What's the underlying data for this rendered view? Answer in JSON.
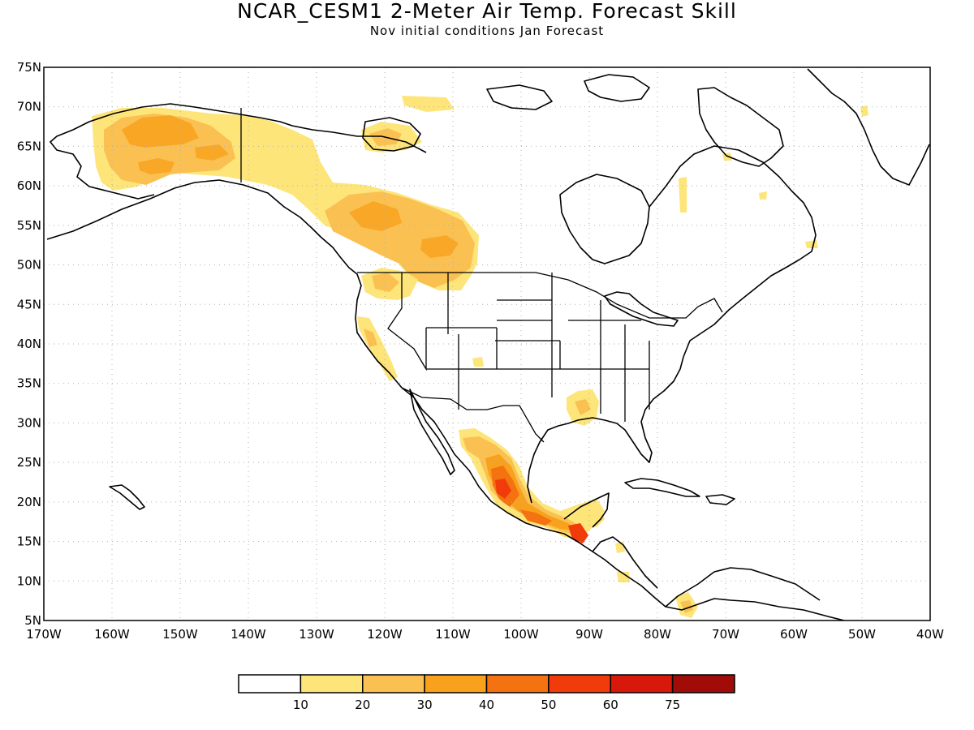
{
  "title": "NCAR_CESM1 2-Meter Air Temp. Forecast Skill",
  "subtitle": "Nov initial conditions  Jan Forecast",
  "lat_labels": [
    "75N",
    "70N",
    "65N",
    "60N",
    "55N",
    "50N",
    "45N",
    "40N",
    "35N",
    "30N",
    "25N",
    "20N",
    "15N",
    "10N",
    "5N"
  ],
  "lon_labels": [
    "170W",
    "160W",
    "150W",
    "140W",
    "130W",
    "120W",
    "110W",
    "100W",
    "90W",
    "80W",
    "70W",
    "60W",
    "50W",
    "40W"
  ],
  "colorbar": {
    "labels": [
      "10",
      "20",
      "30",
      "40",
      "50",
      "60",
      "75"
    ],
    "colors": [
      "#ffffff",
      "#fde57a",
      "#fac152",
      "#f8a11c",
      "#f4720f",
      "#f23b0b",
      "#d8180a",
      "#a10b08"
    ]
  },
  "colors": {
    "land_outline": "#000000",
    "grid": "#b0b0b0",
    "background": "#ffffff"
  }
}
